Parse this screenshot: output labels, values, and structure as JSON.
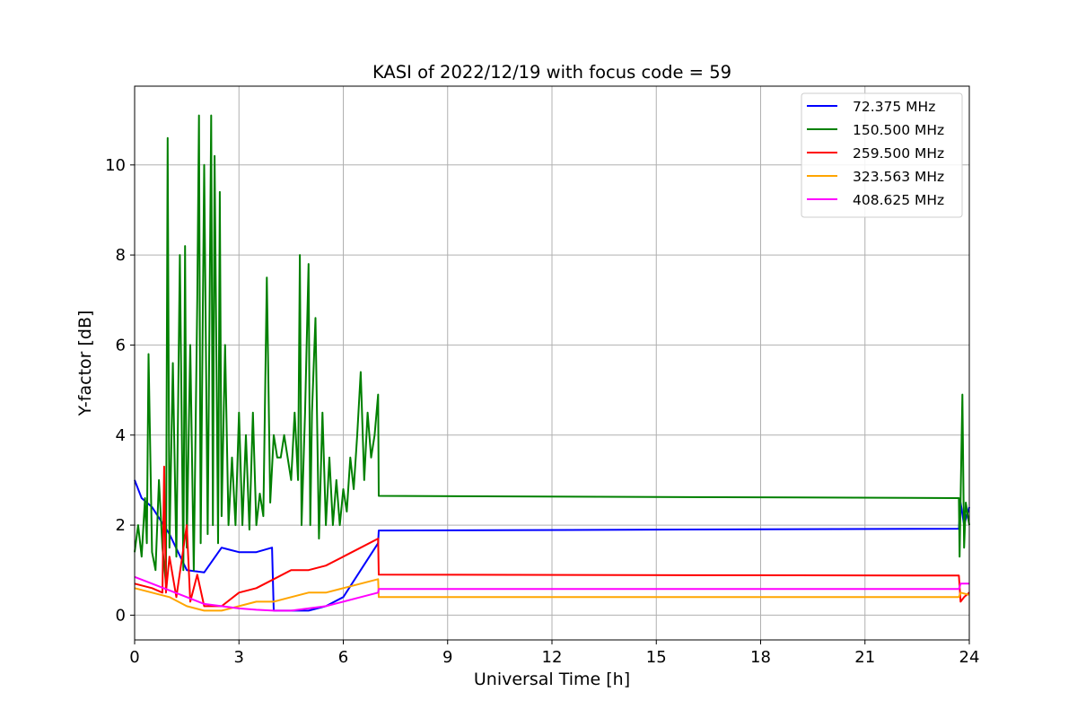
{
  "chart_data": {
    "type": "line",
    "title": "KASI of 2022/12/19 with focus code = 59",
    "xlabel": "Universal Time [h]",
    "ylabel": "Y-factor [dB]",
    "xlim": [
      0,
      24
    ],
    "ylim": [
      -0.55,
      11.75
    ],
    "xticks": [
      0,
      3,
      6,
      9,
      12,
      15,
      18,
      21,
      24
    ],
    "yticks": [
      0,
      2,
      4,
      6,
      8,
      10
    ],
    "grid": true,
    "legend_position": "top-right",
    "series": [
      {
        "name": " 72.375 MHz",
        "color": "#0000ff",
        "x": [
          0,
          0.2,
          0.5,
          1.0,
          1.5,
          2.0,
          2.5,
          3.0,
          3.5,
          3.95,
          4.0,
          4.5,
          5.0,
          5.5,
          6.0,
          6.5,
          7.0,
          7.02,
          23.7,
          23.75,
          23.85,
          24.0
        ],
        "y": [
          3.0,
          2.6,
          2.4,
          1.8,
          1.0,
          0.95,
          1.5,
          1.4,
          1.4,
          1.5,
          0.1,
          0.1,
          0.1,
          0.2,
          0.4,
          1.0,
          1.6,
          1.88,
          1.92,
          2.5,
          2.0,
          2.4
        ]
      },
      {
        "name": "150.500 MHz",
        "color": "#008000",
        "x": [
          0,
          0.1,
          0.2,
          0.3,
          0.35,
          0.4,
          0.5,
          0.6,
          0.7,
          0.8,
          0.9,
          0.95,
          1.0,
          1.1,
          1.2,
          1.3,
          1.4,
          1.45,
          1.5,
          1.6,
          1.7,
          1.8,
          1.85,
          1.9,
          2.0,
          2.1,
          2.2,
          2.25,
          2.3,
          2.4,
          2.45,
          2.5,
          2.6,
          2.7,
          2.8,
          2.9,
          3.0,
          3.1,
          3.2,
          3.3,
          3.4,
          3.5,
          3.6,
          3.7,
          3.8,
          3.9,
          4.0,
          4.1,
          4.2,
          4.3,
          4.4,
          4.5,
          4.6,
          4.7,
          4.75,
          4.8,
          4.9,
          5.0,
          5.05,
          5.1,
          5.2,
          5.3,
          5.4,
          5.5,
          5.6,
          5.7,
          5.8,
          5.9,
          6.0,
          6.1,
          6.2,
          6.3,
          6.4,
          6.5,
          6.6,
          6.7,
          6.8,
          6.9,
          7.0,
          7.02,
          23.7,
          23.72,
          23.8,
          23.85,
          23.9,
          24.0
        ],
        "y": [
          1.4,
          2.0,
          1.3,
          2.6,
          1.6,
          5.8,
          1.4,
          1.0,
          3.0,
          1.5,
          0.7,
          10.6,
          1.5,
          5.6,
          1.3,
          8.0,
          1.0,
          8.2,
          1.5,
          6.0,
          1.0,
          7.0,
          11.1,
          1.6,
          10.0,
          1.8,
          11.1,
          2.0,
          10.2,
          1.6,
          9.4,
          2.2,
          6.0,
          2.0,
          3.5,
          2.0,
          4.5,
          2.0,
          4.0,
          1.9,
          4.5,
          2.0,
          2.7,
          2.2,
          7.5,
          2.5,
          4.0,
          3.5,
          3.5,
          4.0,
          3.5,
          3.0,
          4.5,
          3.0,
          8.0,
          2.0,
          4.5,
          7.8,
          2.0,
          4.5,
          6.6,
          1.7,
          4.5,
          2.0,
          3.5,
          2.0,
          3.0,
          2.0,
          2.8,
          2.3,
          3.5,
          2.8,
          4.0,
          5.4,
          3.0,
          4.5,
          3.5,
          4.0,
          4.9,
          2.65,
          2.6,
          1.3,
          4.9,
          1.5,
          2.5,
          2.0
        ]
      },
      {
        "name": "259.500 MHz",
        "color": "#ff0000",
        "x": [
          0,
          0.5,
          0.8,
          0.85,
          0.9,
          1.0,
          1.2,
          1.5,
          1.6,
          1.8,
          2.0,
          2.5,
          3.0,
          3.5,
          4.0,
          4.5,
          5.0,
          5.5,
          6.0,
          6.5,
          7.0,
          7.02,
          23.7,
          23.75,
          23.85,
          24.0
        ],
        "y": [
          0.7,
          0.6,
          0.5,
          3.3,
          0.5,
          1.3,
          0.4,
          2.0,
          0.3,
          0.9,
          0.2,
          0.2,
          0.5,
          0.6,
          0.8,
          1.0,
          1.0,
          1.1,
          1.3,
          1.5,
          1.7,
          0.9,
          0.88,
          0.3,
          0.4,
          0.5
        ]
      },
      {
        "name": "323.563 MHz",
        "color": "#ffa500",
        "x": [
          0,
          0.5,
          1.0,
          1.5,
          2.0,
          2.5,
          3.0,
          3.5,
          4.0,
          4.5,
          5.0,
          5.5,
          6.0,
          6.5,
          7.0,
          7.02,
          23.7,
          23.75,
          24.0
        ],
        "y": [
          0.6,
          0.5,
          0.4,
          0.2,
          0.1,
          0.1,
          0.2,
          0.3,
          0.3,
          0.4,
          0.5,
          0.5,
          0.6,
          0.7,
          0.8,
          0.4,
          0.4,
          0.5,
          0.45
        ]
      },
      {
        "name": "408.625 MHz",
        "color": "#ff00ff",
        "x": [
          0,
          0.5,
          1.0,
          1.5,
          2.0,
          2.5,
          3.0,
          3.5,
          4.0,
          4.5,
          5.0,
          5.5,
          6.0,
          6.5,
          7.0,
          7.02,
          23.7,
          23.75,
          24.0
        ],
        "y": [
          0.85,
          0.7,
          0.55,
          0.4,
          0.25,
          0.2,
          0.15,
          0.12,
          0.1,
          0.1,
          0.15,
          0.2,
          0.3,
          0.4,
          0.5,
          0.58,
          0.58,
          0.7,
          0.7
        ]
      }
    ]
  }
}
